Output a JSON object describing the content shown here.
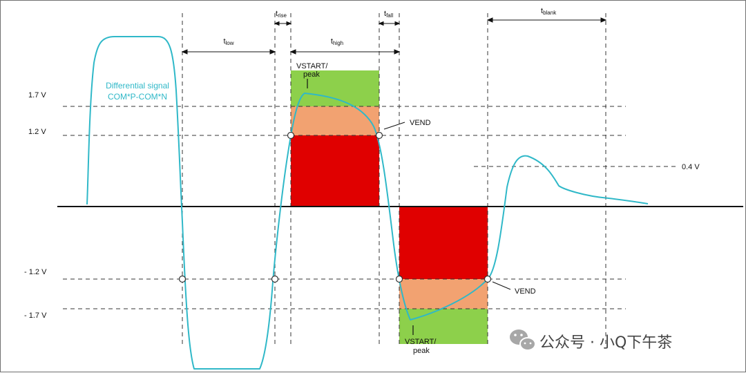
{
  "levels": {
    "pos_high": "1.7 V",
    "pos_low": "1.2 V",
    "neg_low": "- 1.2 V",
    "neg_high": "- 1.7 V",
    "blank_level": "0.4 V"
  },
  "timing": {
    "t_low": {
      "base": "t",
      "sub": "low"
    },
    "t_rise": {
      "base": "t",
      "sub": "rise"
    },
    "t_high": {
      "base": "t",
      "sub": "high"
    },
    "t_fall": {
      "base": "t",
      "sub": "fall"
    },
    "t_blank": {
      "base": "t",
      "sub": "blank"
    }
  },
  "signal": {
    "line1": "Differential signal",
    "line2": "COM*P-COM*N",
    "color": "#2fb8c8"
  },
  "annotations": {
    "vstart_top_1": "VSTART/",
    "vstart_top_2": "peak",
    "vend_top": "VEND",
    "vstart_bottom_1": "VSTART/",
    "vstart_bottom_2": "peak",
    "vend_bottom": "VEND"
  },
  "zones": {
    "green": "#8dd04b",
    "orange": "#f2a271",
    "red": "#e00000"
  },
  "watermark": {
    "text": "公众号 · 小Q下午茶",
    "icon": "wechat-icon"
  }
}
